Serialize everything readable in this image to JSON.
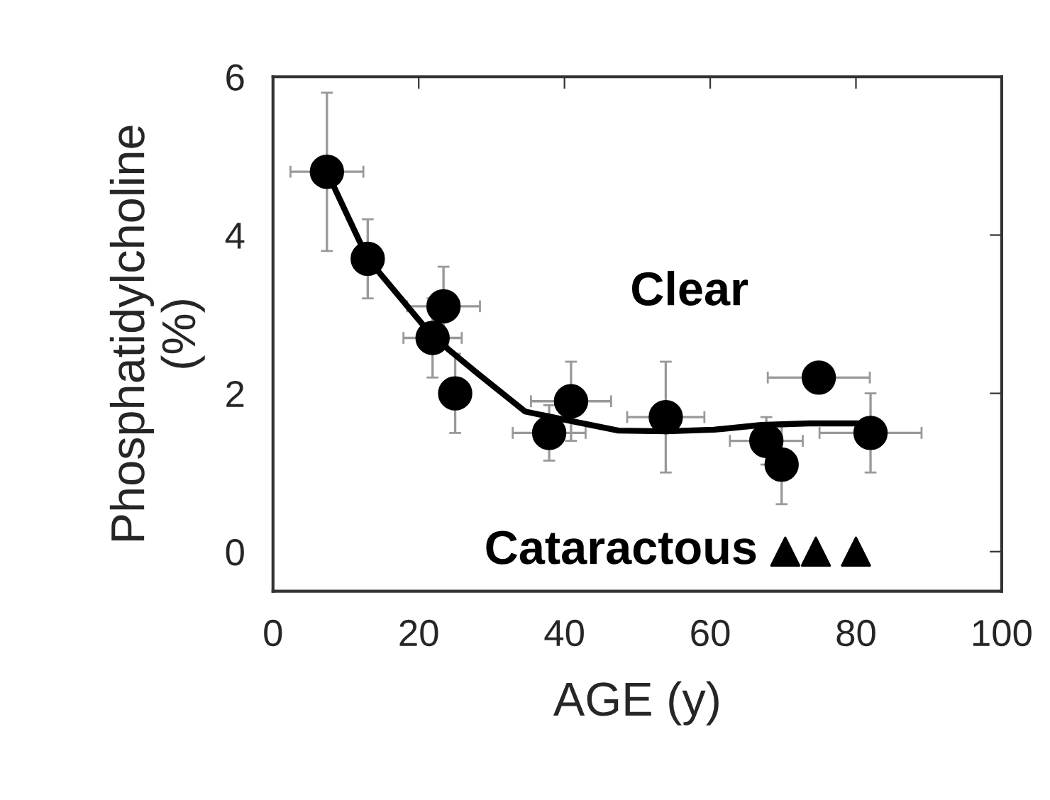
{
  "chart_data": {
    "type": "scatter",
    "xlabel": "AGE (y)",
    "ylabel": "Phosphatidylcholine\n(%)",
    "xlim": [
      0,
      100
    ],
    "xticks": [
      0,
      20,
      40,
      60,
      80,
      100
    ],
    "ylim": [
      -0.5,
      6
    ],
    "yticks": [
      0,
      2,
      4,
      6
    ],
    "grid": false,
    "series": [
      {
        "name": "Clear",
        "marker": "circle",
        "color": "#000000",
        "x": [
          7.4,
          13.0,
          23.4,
          21.9,
          25.0,
          37.9,
          40.9,
          53.9,
          67.7,
          69.8,
          74.9,
          82.0
        ],
        "values": [
          4.8,
          3.7,
          3.1,
          2.7,
          2.0,
          1.5,
          1.9,
          1.7,
          1.4,
          1.1,
          2.2,
          1.5
        ],
        "errors": [
          1.0,
          0.5,
          0.5,
          0.5,
          0.5,
          0.35,
          0.5,
          0.7,
          0.3,
          0.5,
          null,
          0.5
        ],
        "xerrors": [
          5,
          null,
          5,
          4,
          null,
          5,
          5.5,
          5.3,
          5,
          null,
          7,
          7
        ]
      },
      {
        "type": "line",
        "color": "#000000",
        "x": [
          7.4,
          13.0,
          21.9,
          28.1,
          34.6,
          40.9,
          47.4,
          54.0,
          60.5,
          67.0,
          73.5,
          83.2
        ],
        "values": [
          4.8,
          3.7,
          2.72,
          2.25,
          1.77,
          1.65,
          1.53,
          1.52,
          1.54,
          1.6,
          1.62,
          1.62
        ]
      },
      {
        "name": "Cataractous",
        "marker": "triangle",
        "color": "#000000",
        "x": [
          70.3,
          74.5,
          80.0
        ],
        "values": [
          0,
          0,
          0
        ]
      }
    ]
  }
}
